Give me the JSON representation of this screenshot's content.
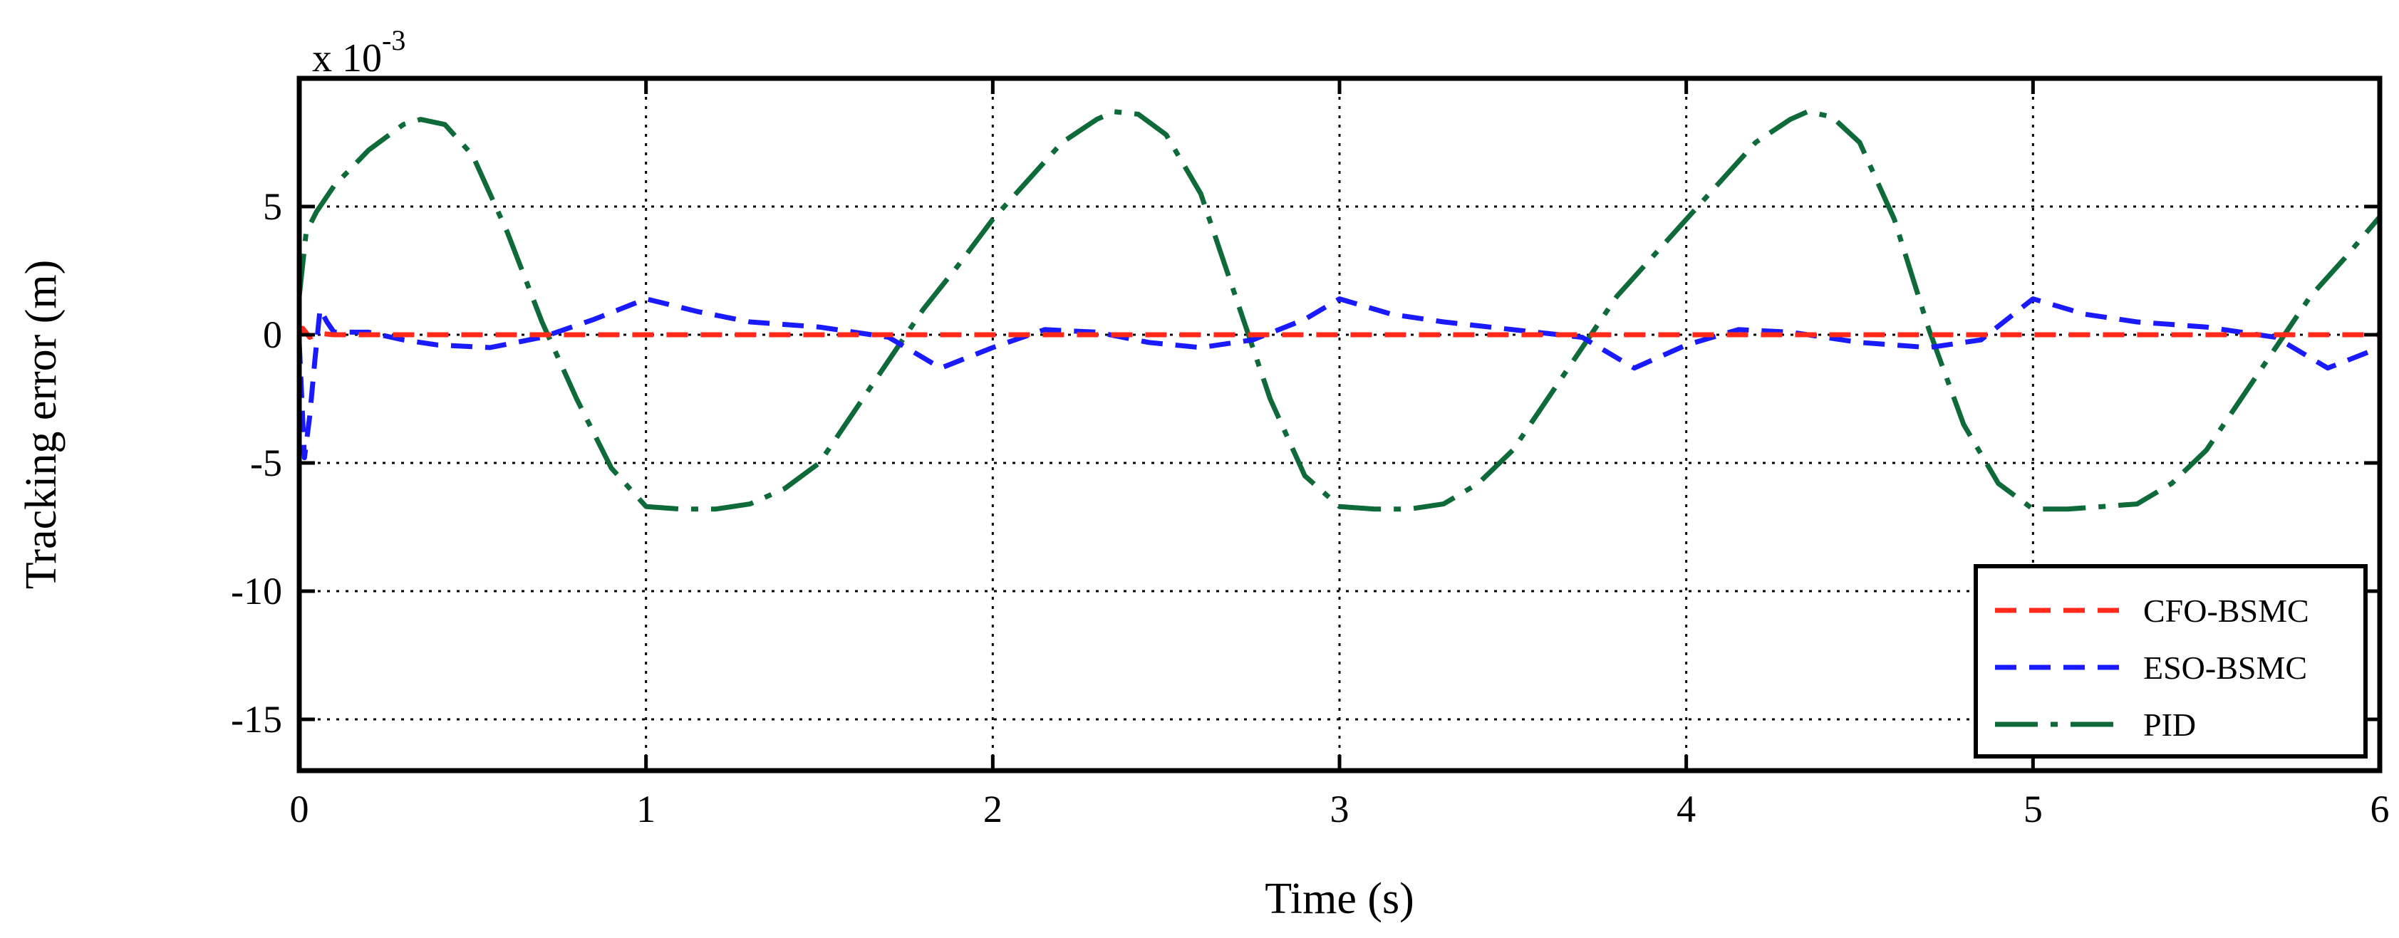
{
  "chart_data": {
    "type": "line",
    "xlabel": "Time (s)",
    "ylabel": "Tracking error (m)",
    "y_exponent_label": "x 10",
    "y_exponent_power": "-3",
    "xlim": [
      0,
      6
    ],
    "ylim": [
      -17,
      10
    ],
    "x_ticks": [
      0,
      1,
      2,
      3,
      4,
      5,
      6
    ],
    "x_tick_labels": [
      "0",
      "1",
      "2",
      "3",
      "4",
      "5",
      "6"
    ],
    "y_ticks": [
      5,
      0,
      -5,
      -10,
      -15
    ],
    "y_tick_labels": [
      "5",
      "0",
      "-5",
      "-10",
      "-15"
    ],
    "grid": true,
    "legend_position": "bottom-right",
    "series": [
      {
        "name": "CFO-BSMC",
        "color": "#ff2a1a",
        "style": "dashed",
        "x": [
          0,
          0.01,
          0.03,
          0.06,
          0.1,
          0.5,
          1,
          2,
          3,
          4,
          5,
          6
        ],
        "y": [
          0,
          0.25,
          -0.1,
          0.05,
          0,
          0,
          0,
          0,
          0,
          0,
          0,
          0
        ]
      },
      {
        "name": "ESO-BSMC",
        "color": "#1a1aff",
        "style": "dashed",
        "x": [
          0,
          0.015,
          0.03,
          0.045,
          0.06,
          0.08,
          0.1,
          0.2,
          0.3,
          0.4,
          0.55,
          0.7,
          0.85,
          1.0,
          1.15,
          1.3,
          1.5,
          1.7,
          1.85,
          2.0,
          2.15,
          2.3,
          2.45,
          2.6,
          2.75,
          2.9,
          3.0,
          3.15,
          3.3,
          3.5,
          3.7,
          3.85,
          4.0,
          4.15,
          4.3,
          4.5,
          4.7,
          4.85,
          5.0,
          5.15,
          5.3,
          5.5,
          5.7,
          5.85,
          6.0
        ],
        "y": [
          -0.3,
          -4.8,
          -3.2,
          -1.0,
          1.0,
          0.5,
          0.1,
          0.1,
          -0.2,
          -0.4,
          -0.5,
          -0.1,
          0.6,
          1.4,
          0.9,
          0.5,
          0.3,
          -0.1,
          -1.3,
          -0.5,
          0.2,
          0.1,
          -0.3,
          -0.5,
          -0.2,
          0.6,
          1.4,
          0.8,
          0.5,
          0.2,
          -0.1,
          -1.3,
          -0.4,
          0.2,
          0.1,
          -0.3,
          -0.5,
          -0.2,
          1.4,
          0.8,
          0.5,
          0.3,
          -0.1,
          -1.3,
          -0.5
        ]
      },
      {
        "name": "PID",
        "color": "#0f6a3a",
        "style": "dashdot",
        "x": [
          0,
          0.02,
          0.05,
          0.1,
          0.2,
          0.3,
          0.35,
          0.42,
          0.5,
          0.6,
          0.7,
          0.8,
          0.9,
          1.0,
          1.1,
          1.2,
          1.3,
          1.4,
          1.5,
          1.6,
          1.7,
          1.8,
          1.9,
          2.0,
          2.1,
          2.2,
          2.3,
          2.35,
          2.42,
          2.5,
          2.6,
          2.7,
          2.8,
          2.9,
          3.0,
          3.1,
          3.2,
          3.3,
          3.4,
          3.5,
          3.6,
          3.7,
          3.8,
          3.9,
          4.0,
          4.1,
          4.2,
          4.3,
          4.35,
          4.42,
          4.5,
          4.6,
          4.7,
          4.8,
          4.9,
          5.0,
          5.1,
          5.2,
          5.3,
          5.4,
          5.5,
          5.6,
          5.7,
          5.8,
          5.9,
          6.0
        ],
        "y": [
          1.5,
          4.0,
          4.8,
          5.8,
          7.2,
          8.2,
          8.4,
          8.2,
          7.0,
          4.0,
          0.5,
          -2.5,
          -5.2,
          -6.7,
          -6.8,
          -6.8,
          -6.6,
          -6.0,
          -5.0,
          -3.0,
          -1.0,
          1.0,
          2.7,
          4.5,
          6.0,
          7.5,
          8.4,
          8.7,
          8.6,
          7.8,
          5.5,
          1.5,
          -2.5,
          -5.5,
          -6.7,
          -6.8,
          -6.8,
          -6.6,
          -5.8,
          -4.5,
          -2.5,
          -0.5,
          1.5,
          3.0,
          4.5,
          6.0,
          7.5,
          8.4,
          8.7,
          8.5,
          7.5,
          4.5,
          0.2,
          -3.5,
          -5.8,
          -6.8,
          -6.8,
          -6.7,
          -6.6,
          -5.8,
          -4.5,
          -2.5,
          -0.5,
          1.5,
          3.0,
          4.6
        ]
      }
    ]
  }
}
